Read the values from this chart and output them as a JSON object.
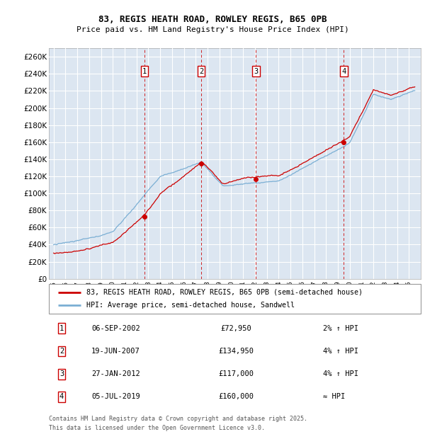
{
  "title": "83, REGIS HEATH ROAD, ROWLEY REGIS, B65 0PB",
  "subtitle": "Price paid vs. HM Land Registry's House Price Index (HPI)",
  "background_color": "#dce6f1",
  "hpi_line_color": "#7bafd4",
  "price_line_color": "#cc0000",
  "dot_color": "#cc0000",
  "ylim": [
    0,
    270000
  ],
  "xlim_left": 1994.6,
  "xlim_right": 2026.0,
  "sales": [
    {
      "num": 1,
      "price": 72950,
      "year_x": 2002.67
    },
    {
      "num": 2,
      "price": 134950,
      "year_x": 2007.46
    },
    {
      "num": 3,
      "price": 117000,
      "year_x": 2012.07
    },
    {
      "num": 4,
      "price": 160000,
      "year_x": 2019.51
    }
  ],
  "legend_line1": "83, REGIS HEATH ROAD, ROWLEY REGIS, B65 0PB (semi-detached house)",
  "legend_line2": "HPI: Average price, semi-detached house, Sandwell",
  "table_rows": [
    {
      "num": 1,
      "date": "06-SEP-2002",
      "price": "£72,950",
      "rel": "2% ↑ HPI"
    },
    {
      "num": 2,
      "date": "19-JUN-2007",
      "price": "£134,950",
      "rel": "4% ↑ HPI"
    },
    {
      "num": 3,
      "date": "27-JAN-2012",
      "price": "£117,000",
      "rel": "4% ↑ HPI"
    },
    {
      "num": 4,
      "date": "05-JUL-2019",
      "price": "£160,000",
      "rel": "≈ HPI"
    }
  ],
  "footer": "Contains HM Land Registry data © Crown copyright and database right 2025.\nThis data is licensed under the Open Government Licence v3.0."
}
